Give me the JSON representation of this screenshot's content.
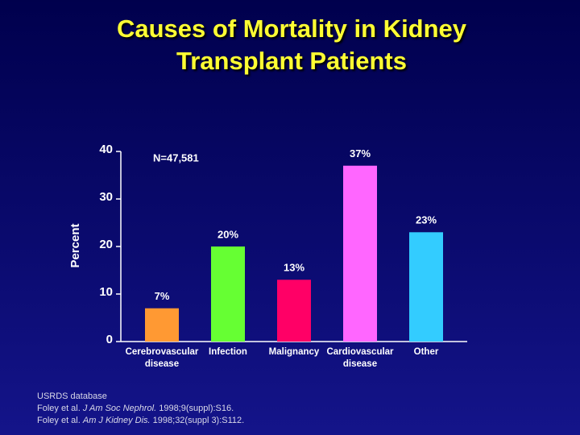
{
  "title": "Causes of Mortality in Kidney Transplant Patients",
  "chart_data": {
    "type": "bar",
    "categories": [
      "Cerebrovascular disease",
      "Infection",
      "Malignancy",
      "Cardiovascular disease",
      "Other"
    ],
    "values": [
      7,
      20,
      13,
      37,
      23
    ],
    "value_labels": [
      "7%",
      "20%",
      "13%",
      "37%",
      "23%"
    ],
    "colors": [
      "#ff9933",
      "#66ff33",
      "#ff0066",
      "#ff66ff",
      "#33ccff"
    ],
    "ylabel": "Percent",
    "annotation": "N=47,581",
    "ylim": [
      0,
      40
    ],
    "yticks": [
      0,
      10,
      20,
      30,
      40
    ]
  },
  "footnotes": [
    [
      {
        "text": "USRDS database",
        "italic": false
      }
    ],
    [
      {
        "text": "Foley et al. ",
        "italic": false
      },
      {
        "text": "J Am Soc Nephrol.",
        "italic": true
      },
      {
        "text": " 1998;9(suppl):S16.",
        "italic": false
      }
    ],
    [
      {
        "text": "Foley et al. ",
        "italic": false
      },
      {
        "text": "Am J Kidney Dis.",
        "italic": true
      },
      {
        "text": " 1998;32(suppl 3):S112.",
        "italic": false
      }
    ]
  ]
}
